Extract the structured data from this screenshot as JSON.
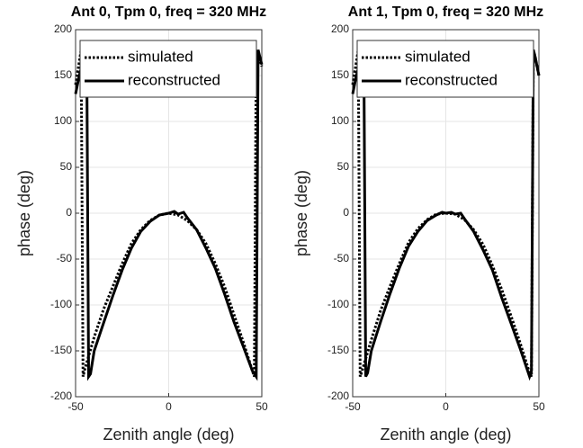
{
  "chart_data": [
    {
      "type": "line",
      "title": "Ant 0, Tpm 0, freq = 320 MHz",
      "x_label": "Zenith angle (deg)",
      "y_label": "phase (deg)",
      "xlim": [
        -50,
        50
      ],
      "xticks": [
        -50,
        0,
        50
      ],
      "ylim": [
        -200,
        200
      ],
      "yticks": [
        -200,
        -150,
        -100,
        -50,
        0,
        50,
        100,
        150,
        200
      ],
      "grid": true,
      "legend": "upper left",
      "series": [
        {
          "name": "simulated",
          "color": "#000000",
          "style": "dotted",
          "x": [
            -50,
            -48,
            -47,
            -46,
            -45,
            -40,
            -35,
            -30,
            -25,
            -20,
            -15,
            -10,
            -5,
            0,
            5,
            10,
            15,
            20,
            25,
            30,
            35,
            40,
            45,
            46,
            47,
            48,
            50
          ],
          "values": [
            140,
            165,
            178,
            -178,
            -170,
            -135,
            -105,
            -80,
            -55,
            -33,
            -18,
            -8,
            -2,
            0,
            -2,
            -8,
            -18,
            -33,
            -55,
            -80,
            -110,
            -140,
            -172,
            -178,
            178,
            172,
            160
          ]
        },
        {
          "name": "reconstructed",
          "color": "#000000",
          "style": "solid",
          "x": [
            -50,
            -48,
            -46,
            -44,
            -43,
            -42,
            -40,
            -35,
            -30,
            -25,
            -20,
            -15,
            -10,
            -5,
            0,
            3,
            5,
            8,
            10,
            15,
            20,
            25,
            30,
            35,
            40,
            45,
            47,
            48,
            49,
            50
          ],
          "values": [
            130,
            150,
            165,
            178,
            -178,
            -175,
            -150,
            -120,
            -90,
            -62,
            -38,
            -20,
            -9,
            -2,
            0,
            2,
            -1,
            1,
            -5,
            -18,
            -38,
            -60,
            -88,
            -118,
            -145,
            -172,
            -178,
            178,
            170,
            162
          ]
        }
      ]
    },
    {
      "type": "line",
      "title": "Ant 1, Tpm 0, freq = 320 MHz",
      "x_label": "Zenith angle (deg)",
      "y_label": "phase (deg)",
      "xlim": [
        -50,
        50
      ],
      "xticks": [
        -50,
        0,
        50
      ],
      "ylim": [
        -200,
        200
      ],
      "yticks": [
        -200,
        -150,
        -100,
        -50,
        0,
        50,
        100,
        150,
        200
      ],
      "grid": true,
      "legend": "upper left",
      "series": [
        {
          "name": "simulated",
          "color": "#000000",
          "style": "dotted",
          "x": [
            -50,
            -48,
            -47,
            -46,
            -45,
            -40,
            -35,
            -30,
            -25,
            -20,
            -15,
            -10,
            -5,
            0,
            5,
            10,
            15,
            20,
            25,
            30,
            35,
            40,
            45,
            46,
            47,
            48,
            50
          ],
          "values": [
            140,
            165,
            178,
            -178,
            -172,
            -138,
            -106,
            -80,
            -55,
            -32,
            -17,
            -7,
            -1,
            0,
            -1,
            -7,
            -18,
            -34,
            -57,
            -83,
            -112,
            -142,
            -174,
            -178,
            178,
            170,
            150
          ]
        },
        {
          "name": "reconstructed",
          "color": "#000000",
          "style": "solid",
          "x": [
            -50,
            -48,
            -46,
            -44,
            -43,
            -42,
            -40,
            -35,
            -30,
            -25,
            -20,
            -15,
            -10,
            -5,
            -2,
            0,
            3,
            5,
            8,
            10,
            15,
            20,
            25,
            30,
            35,
            40,
            45,
            46,
            47,
            48,
            50
          ],
          "values": [
            130,
            150,
            165,
            178,
            -178,
            -174,
            -150,
            -118,
            -88,
            -60,
            -36,
            -20,
            -8,
            -2,
            1,
            0,
            1,
            -1,
            0,
            -6,
            -20,
            -40,
            -62,
            -92,
            -120,
            -148,
            -178,
            -172,
            178,
            170,
            150
          ]
        }
      ]
    }
  ]
}
